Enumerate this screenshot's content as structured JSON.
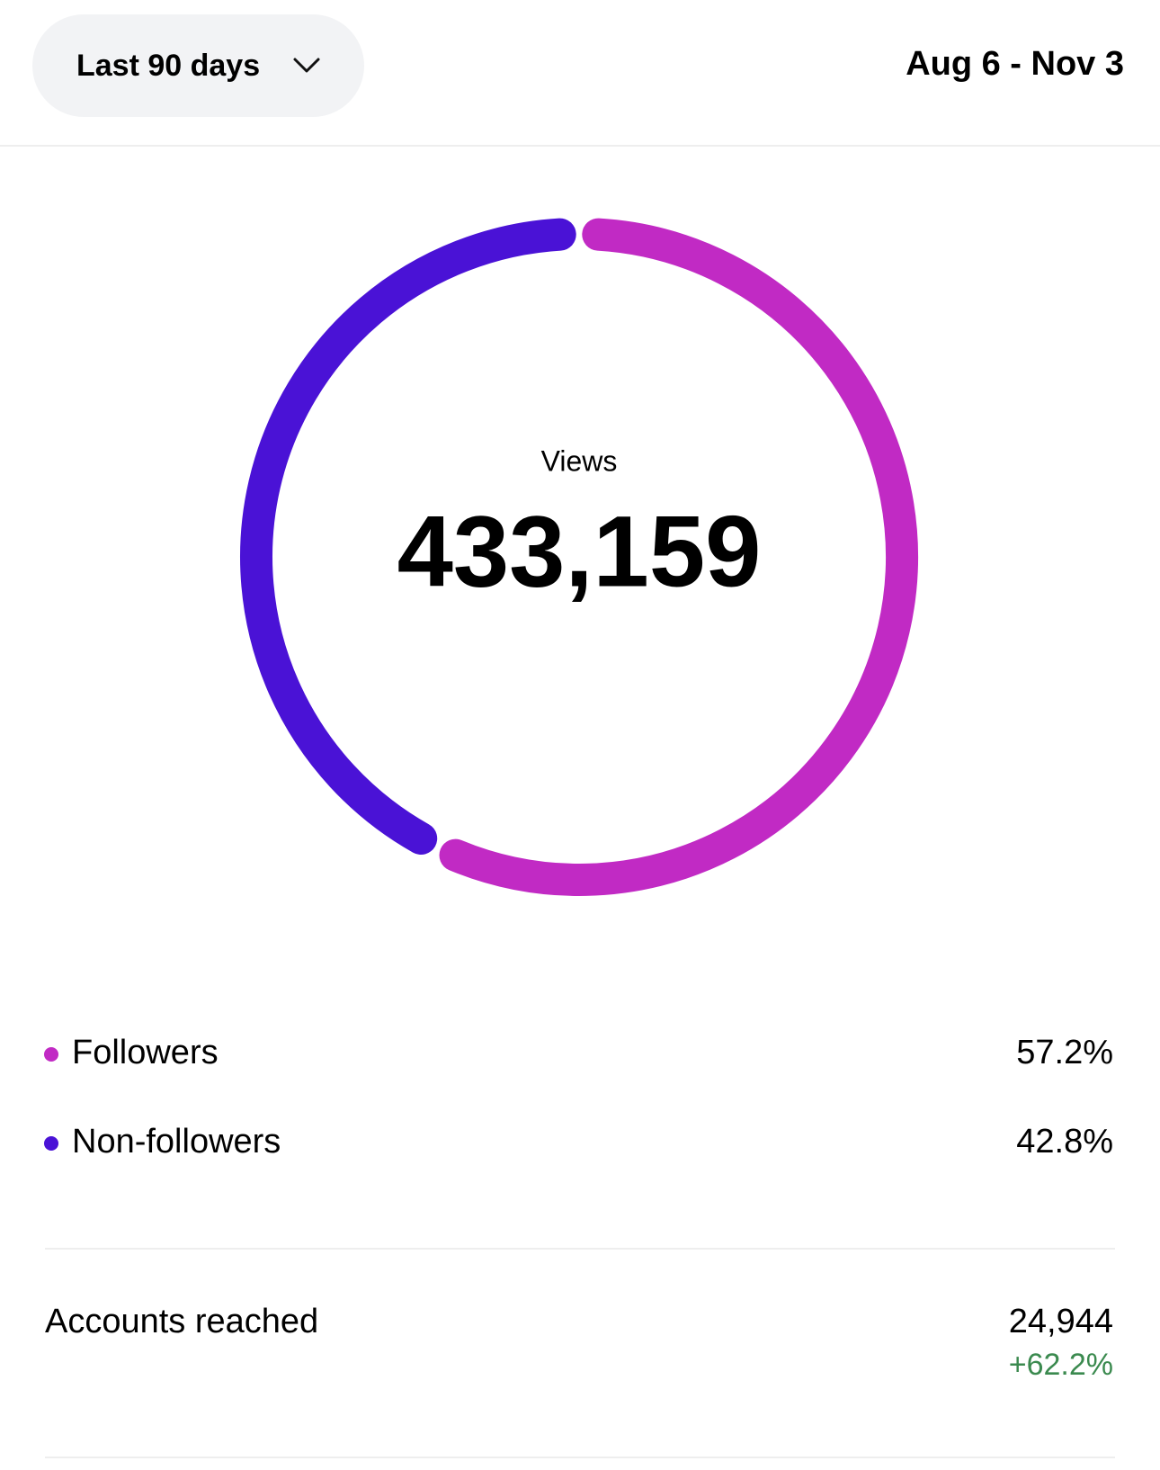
{
  "header": {
    "range_selector": "Last 90 days",
    "date_range": "Aug 6 - Nov 3"
  },
  "chart_data": {
    "type": "donut",
    "center_label": "Views",
    "center_value": "433,159",
    "categories": [
      "Followers",
      "Non-followers"
    ],
    "values": [
      57.2,
      42.8
    ],
    "value_labels": [
      "57.2%",
      "42.8%"
    ],
    "colors": [
      "#c12ac4",
      "#4a12d6"
    ]
  },
  "metrics": [
    {
      "label": "Accounts reached",
      "value": "24,944",
      "change": "+62.2%"
    }
  ]
}
